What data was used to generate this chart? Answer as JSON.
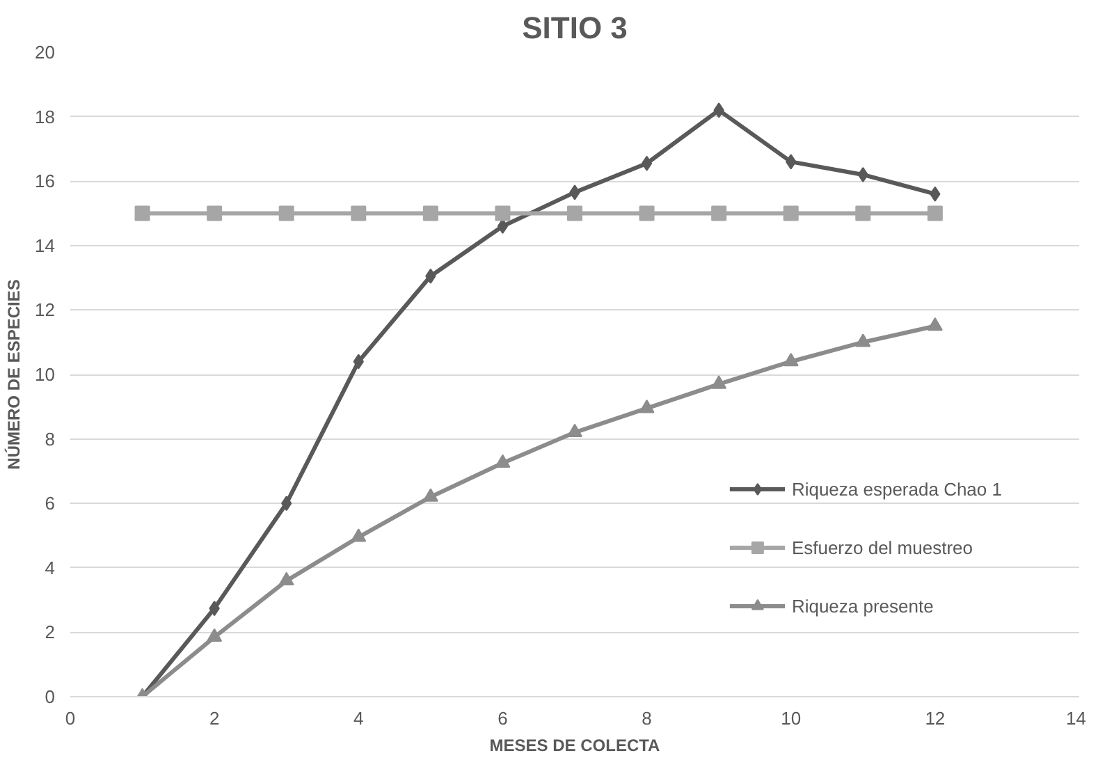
{
  "chart_data": {
    "type": "line",
    "title": "SITIO 3",
    "xlabel": "MESES DE COLECTA",
    "ylabel": "NÚMERO DE ESPECIES",
    "x": [
      1,
      2,
      3,
      4,
      5,
      6,
      7,
      8,
      9,
      10,
      11,
      12
    ],
    "series": [
      {
        "name": "Riqueza esperada Chao 1",
        "color": "#595959",
        "marker": "diamond",
        "values": [
          0,
          2.74,
          6.0,
          10.4,
          13.05,
          14.6,
          15.65,
          16.55,
          18.2,
          16.6,
          16.2,
          15.6
        ]
      },
      {
        "name": "Esfuerzo del muestreo",
        "color": "#a6a6a6",
        "marker": "square",
        "values": [
          15,
          15,
          15,
          15,
          15,
          15,
          15,
          15,
          15,
          15,
          15,
          15
        ]
      },
      {
        "name": "Riqueza presente",
        "color": "#8c8c8c",
        "marker": "triangle",
        "values": [
          0,
          1.85,
          3.6,
          4.95,
          6.2,
          7.25,
          8.2,
          8.95,
          9.7,
          10.4,
          11.0,
          11.5
        ]
      }
    ],
    "xlim": [
      0,
      14
    ],
    "xticks": [
      0,
      2,
      4,
      6,
      8,
      10,
      12,
      14
    ],
    "ylim": [
      0,
      20
    ],
    "yticks": [
      0,
      2,
      4,
      6,
      8,
      10,
      12,
      14,
      16,
      18,
      20
    ],
    "grid": "y",
    "legend": "right",
    "line_style": "solid"
  }
}
